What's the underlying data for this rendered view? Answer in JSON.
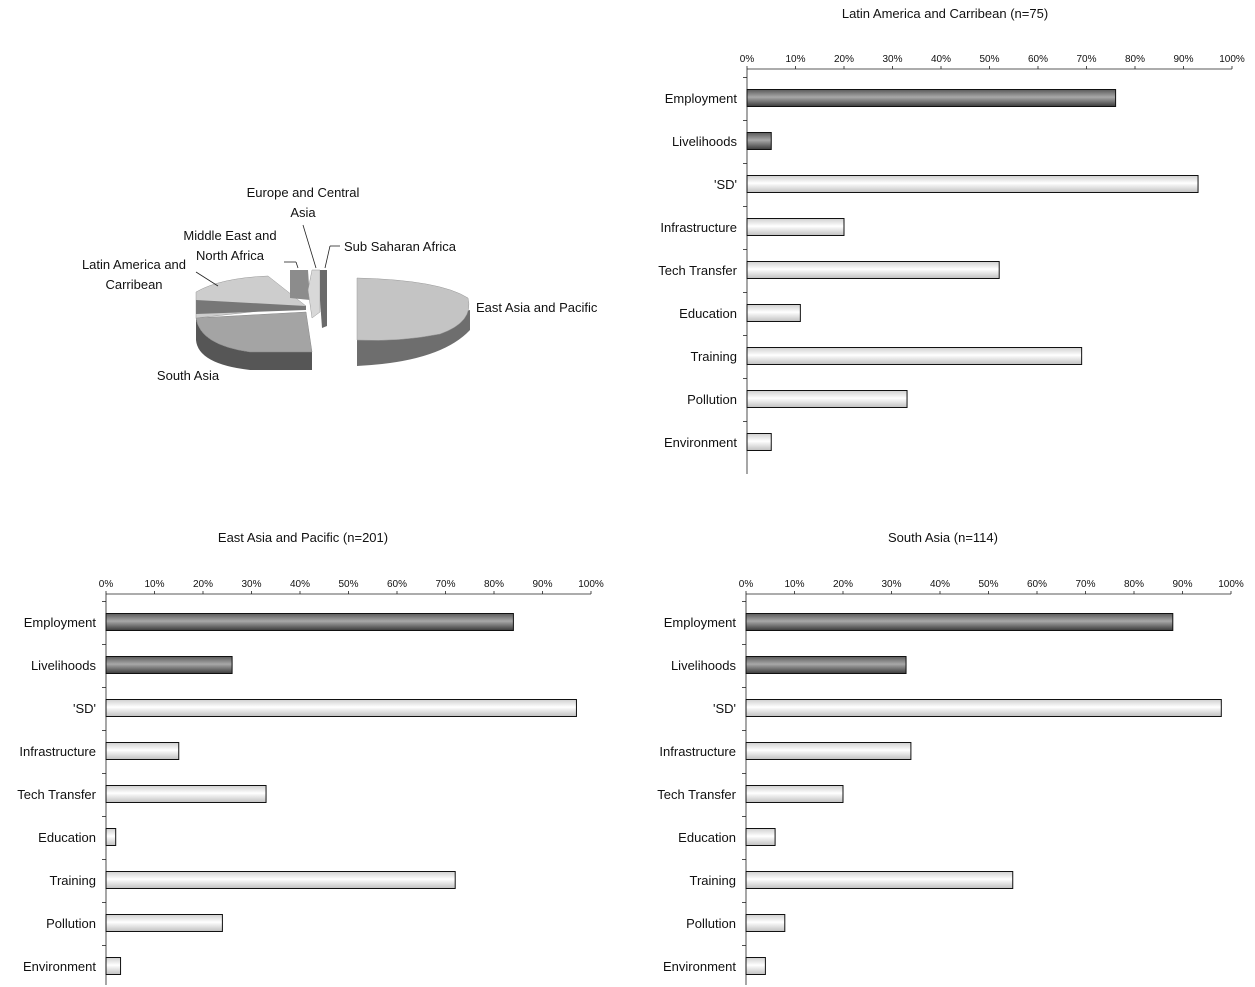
{
  "chart_data": [
    {
      "type": "pie",
      "title": "",
      "slices": [
        {
          "label": "East Asia and Pacific",
          "value": 201
        },
        {
          "label": "South Asia",
          "value": 114
        },
        {
          "label": "Latin America and Carribean",
          "value": 75
        },
        {
          "label": "Middle East and North Africa",
          "value": 8
        },
        {
          "label": "Europe and Central Asia",
          "value": 6
        },
        {
          "label": "Sub Saharan Africa",
          "value": 4
        }
      ],
      "colors": {
        "East Asia and Pacific": "#b9b9b9",
        "South Asia": "#8f8f8f",
        "Latin America and Carribean": "#c6c6c6",
        "Middle East and North Africa": "#9a9a9a",
        "Europe and Central Asia": "#d2d2d2",
        "Sub Saharan Africa": "#8a8a8a"
      }
    },
    {
      "type": "bar",
      "orientation": "horizontal",
      "title": "Latin America and Carribean (n=75)",
      "categories": [
        "Employment",
        "Livelihoods",
        "'SD'",
        "Infrastructure",
        "Tech Transfer",
        "Education",
        "Training",
        "Pollution",
        "Environment"
      ],
      "values": [
        76,
        5,
        93,
        20,
        52,
        11,
        69,
        33,
        5
      ],
      "dark": [
        true,
        true,
        false,
        false,
        false,
        false,
        false,
        false,
        false
      ],
      "xlim": [
        0,
        100
      ],
      "xticks": [
        "0%",
        "10%",
        "20%",
        "30%",
        "40%",
        "50%",
        "60%",
        "70%",
        "80%",
        "90%",
        "100%"
      ]
    },
    {
      "type": "bar",
      "orientation": "horizontal",
      "title": "East Asia and Pacific (n=201)",
      "categories": [
        "Employment",
        "Livelihoods",
        "'SD'",
        "Infrastructure",
        "Tech Transfer",
        "Education",
        "Training",
        "Pollution",
        "Environment"
      ],
      "values": [
        84,
        26,
        97,
        15,
        33,
        2,
        72,
        24,
        3
      ],
      "dark": [
        true,
        true,
        false,
        false,
        false,
        false,
        false,
        false,
        false
      ],
      "xlim": [
        0,
        100
      ],
      "xticks": [
        "0%",
        "10%",
        "20%",
        "30%",
        "40%",
        "50%",
        "60%",
        "70%",
        "80%",
        "90%",
        "100%"
      ]
    },
    {
      "type": "bar",
      "orientation": "horizontal",
      "title": "South Asia (n=114)",
      "categories": [
        "Employment",
        "Livelihoods",
        "'SD'",
        "Infrastructure",
        "Tech Transfer",
        "Education",
        "Training",
        "Pollution",
        "Environment"
      ],
      "values": [
        88,
        33,
        98,
        34,
        20,
        6,
        55,
        8,
        4
      ],
      "dark": [
        true,
        true,
        false,
        false,
        false,
        false,
        false,
        false,
        false
      ],
      "xlim": [
        0,
        100
      ],
      "xticks": [
        "0%",
        "10%",
        "20%",
        "30%",
        "40%",
        "50%",
        "60%",
        "70%",
        "80%",
        "90%",
        "100%"
      ]
    }
  ]
}
